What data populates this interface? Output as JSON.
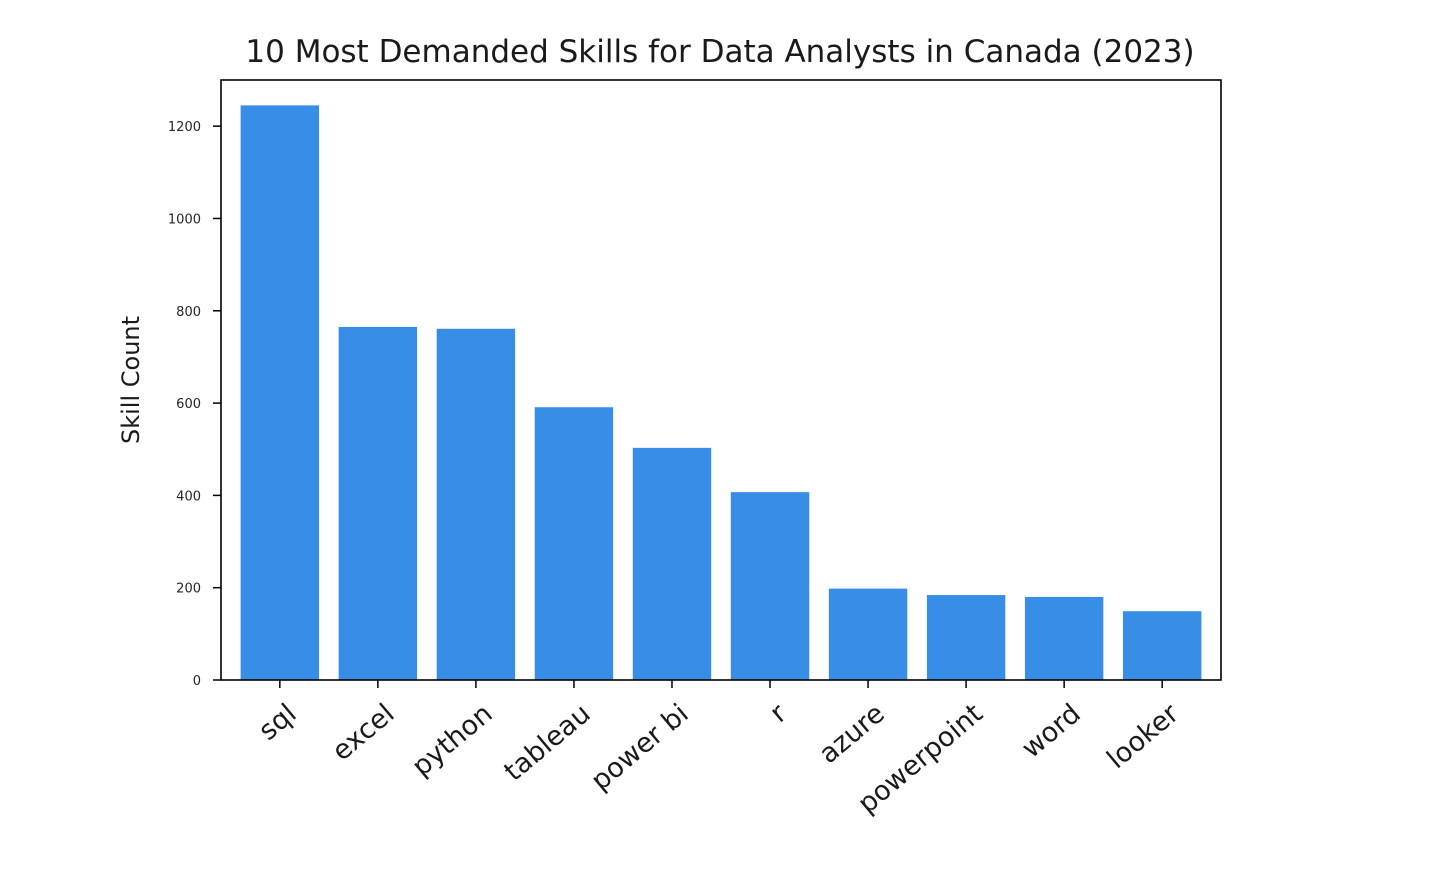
{
  "chart_data": {
    "type": "bar",
    "title": "10 Most Demanded Skills for Data Analysts in Canada (2023)",
    "xlabel": "",
    "ylabel": "Skill Count",
    "categories": [
      "sql",
      "excel",
      "python",
      "tableau",
      "power bi",
      "r",
      "azure",
      "powerpoint",
      "word",
      "looker"
    ],
    "values": [
      1245,
      765,
      761,
      591,
      503,
      407,
      198,
      184,
      180,
      149
    ],
    "ylim": [
      0,
      1300
    ],
    "yticks": [
      0,
      200,
      400,
      600,
      800,
      1000,
      1200
    ],
    "ytick_labels": [
      "0",
      "200",
      "400",
      "600",
      "800",
      "1000",
      "1200"
    ],
    "bar_color": "#388de6",
    "grid": false,
    "legend": "none"
  }
}
